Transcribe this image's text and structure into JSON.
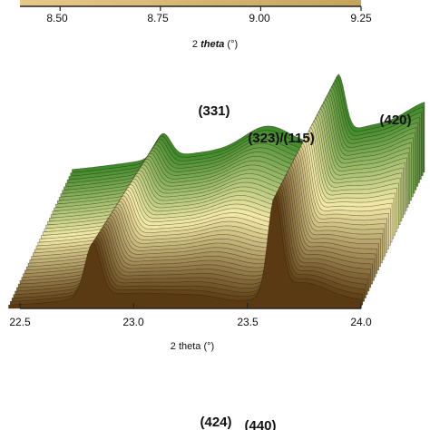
{
  "chart_data": [
    {
      "type": "line",
      "title": "",
      "xlabel_prefix": "2 ",
      "xlabel_italic": "theta",
      "xlabel_suffix": " (°)",
      "xlim": [
        8.4,
        9.25
      ],
      "x_ticks": [
        "8.50",
        "8.75",
        "9.00",
        "9.25"
      ],
      "x_tick_values": [
        8.5,
        8.75,
        9.0,
        9.25
      ],
      "partially_visible": true
    },
    {
      "type": "line",
      "style": "waterfall",
      "title": "",
      "xlabel": "2 theta (°)",
      "xlim": [
        22.5,
        24.0
      ],
      "x_ticks": [
        "22.5",
        "23.0",
        "23.5",
        "24.0"
      ],
      "x_tick_values": [
        22.5,
        23.0,
        23.5,
        24.0
      ],
      "n_traces": 40,
      "color_front": "#5a3a12",
      "color_mid": "#f3e9a8",
      "color_back": "#3f8a2a",
      "peaks": [
        {
          "label": "(331)",
          "x": 23.31
        },
        {
          "label": "(323)/(115)",
          "x": 23.6
        },
        {
          "label": "(420)",
          "x": 24.03
        }
      ],
      "front_trace_peaks_x": [
        22.82,
        23.63
      ]
    },
    {
      "type": "line",
      "title": "",
      "partially_visible": true,
      "peaks": [
        {
          "label": "(424)"
        },
        {
          "label": "(440)"
        }
      ]
    }
  ]
}
